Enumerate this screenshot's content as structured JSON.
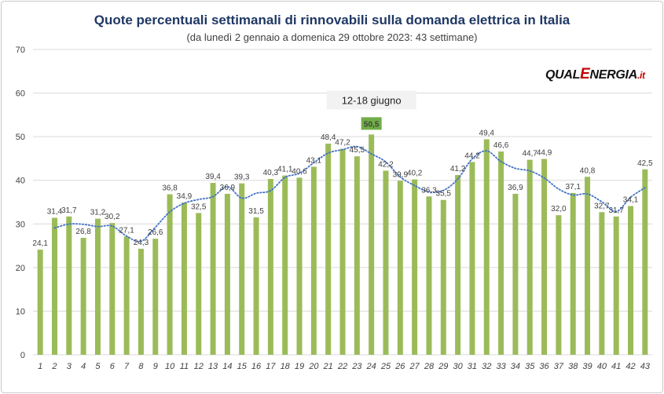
{
  "chart_data": {
    "type": "bar",
    "title": "Quote percentuali settimanali di rinnovabili sulla domanda elettrica in Italia",
    "subtitle": "(da lunedì 2 gennaio a domenica 29 ottobre 2023:  43 settimane)",
    "categories": [
      "1",
      "2",
      "3",
      "4",
      "5",
      "6",
      "7",
      "8",
      "9",
      "10",
      "11",
      "12",
      "13",
      "14",
      "15",
      "16",
      "17",
      "18",
      "19",
      "20",
      "21",
      "22",
      "23",
      "24",
      "25",
      "26",
      "27",
      "28",
      "29",
      "30",
      "31",
      "32",
      "33",
      "34",
      "35",
      "36",
      "37",
      "38",
      "39",
      "40",
      "41",
      "42",
      "43"
    ],
    "values": [
      24.1,
      31.4,
      31.7,
      26.8,
      31.2,
      30.2,
      27.1,
      24.3,
      26.6,
      36.8,
      34.9,
      32.5,
      39.4,
      36.9,
      39.3,
      31.5,
      40.3,
      41.1,
      40.6,
      43.1,
      48.4,
      47.2,
      45.5,
      50.5,
      42.2,
      39.9,
      40.2,
      36.3,
      35.5,
      41.2,
      44.2,
      49.4,
      46.6,
      36.9,
      44.7,
      44.9,
      32.0,
      37.1,
      40.8,
      32.7,
      31.7,
      34.1,
      42.5
    ],
    "value_labels": [
      "24,1",
      "31,4",
      "31,7",
      "26,8",
      "31,2",
      "30,2",
      "27,1",
      "24,3",
      "26,6",
      "36,8",
      "34,9",
      "32,5",
      "39,4",
      "36,9",
      "39,3",
      "31,5",
      "40,3",
      "41,1",
      "40,6",
      "43,1",
      "48,4",
      "47,2",
      "45,5",
      "50,5",
      "42,2",
      "39,9",
      "40,2",
      "36,3",
      "35,5",
      "41,2",
      "44,2",
      "49,4",
      "46,6",
      "36,9",
      "44,7",
      "44,9",
      "32,0",
      "37,1",
      "40,8",
      "32,7",
      "31,7",
      "34,1",
      "42,5"
    ],
    "ylim": [
      0,
      70
    ],
    "yticks": [
      0,
      10,
      20,
      30,
      40,
      50,
      60,
      70
    ],
    "grid": true,
    "trendline": "moving average (dotted blue)",
    "highlight": {
      "index": 23,
      "value_label": "50,5",
      "callout": "12-18 giugno",
      "color": "#70ad47"
    },
    "colors": {
      "bar": "#9bbb59",
      "trend": "#4472c4",
      "grid": "#d9d9d9",
      "title": "#1f3864"
    }
  },
  "logo": {
    "part1": "QUAL",
    "part2": "E",
    "part3": "NERGIA",
    "part4": ".it"
  }
}
